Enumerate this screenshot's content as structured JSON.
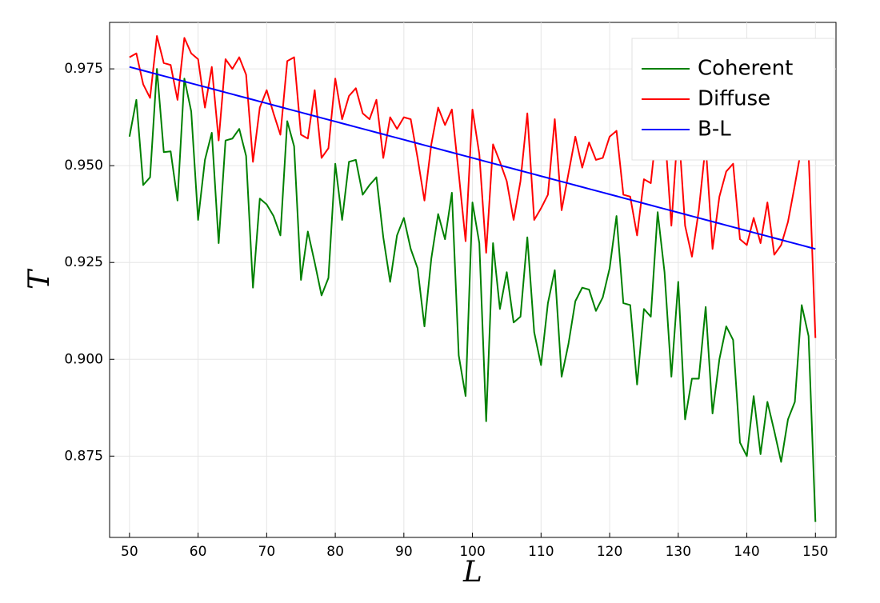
{
  "chart_data": {
    "type": "line",
    "xlabel": "L",
    "ylabel": "T",
    "x": [
      50,
      51,
      52,
      53,
      54,
      55,
      56,
      57,
      58,
      59,
      60,
      61,
      62,
      63,
      64,
      65,
      66,
      67,
      68,
      69,
      70,
      71,
      72,
      73,
      74,
      75,
      76,
      77,
      78,
      79,
      80,
      81,
      82,
      83,
      84,
      85,
      86,
      87,
      88,
      89,
      90,
      91,
      92,
      93,
      94,
      95,
      96,
      97,
      98,
      99,
      100,
      101,
      102,
      103,
      104,
      105,
      106,
      107,
      108,
      109,
      110,
      111,
      112,
      113,
      114,
      115,
      116,
      117,
      118,
      119,
      120,
      121,
      122,
      123,
      124,
      125,
      126,
      127,
      128,
      129,
      130,
      131,
      132,
      133,
      134,
      135,
      136,
      137,
      138,
      139,
      140,
      141,
      142,
      143,
      144,
      145,
      146,
      147,
      148,
      149,
      150
    ],
    "series": [
      {
        "name": "Coherent",
        "color": "#008000",
        "values": [
          0.9575,
          0.967,
          0.945,
          0.947,
          0.975,
          0.9535,
          0.9537,
          0.941,
          0.9725,
          0.964,
          0.936,
          0.9515,
          0.9585,
          0.93,
          0.9565,
          0.957,
          0.9595,
          0.9525,
          0.9185,
          0.9415,
          0.94,
          0.937,
          0.932,
          0.9615,
          0.955,
          0.9205,
          0.933,
          0.925,
          0.9165,
          0.921,
          0.9505,
          0.936,
          0.951,
          0.9515,
          0.9425,
          0.945,
          0.947,
          0.9315,
          0.92,
          0.932,
          0.9365,
          0.9285,
          0.9235,
          0.9085,
          0.926,
          0.9375,
          0.931,
          0.943,
          0.901,
          0.8905,
          0.9405,
          0.93,
          0.884,
          0.93,
          0.913,
          0.9225,
          0.9095,
          0.911,
          0.9315,
          0.907,
          0.8985,
          0.9145,
          0.923,
          0.8955,
          0.904,
          0.915,
          0.9185,
          0.918,
          0.9125,
          0.916,
          0.9235,
          0.937,
          0.9145,
          0.914,
          0.8935,
          0.913,
          0.911,
          0.938,
          0.9225,
          0.8955,
          0.92,
          0.8845,
          0.895,
          0.895,
          0.9135,
          0.886,
          0.9,
          0.9085,
          0.905,
          0.8785,
          0.875,
          0.8905,
          0.8755,
          0.889,
          0.8815,
          0.8735,
          0.8845,
          0.889,
          0.914,
          0.906,
          0.858
        ]
      },
      {
        "name": "Diffuse",
        "color": "#ff0000",
        "values": [
          0.978,
          0.979,
          0.971,
          0.9675,
          0.9835,
          0.9765,
          0.976,
          0.967,
          0.983,
          0.979,
          0.9775,
          0.965,
          0.9755,
          0.9565,
          0.9775,
          0.975,
          0.978,
          0.9735,
          0.951,
          0.965,
          0.9695,
          0.9635,
          0.958,
          0.977,
          0.978,
          0.958,
          0.957,
          0.9695,
          0.952,
          0.9545,
          0.9725,
          0.962,
          0.968,
          0.97,
          0.9635,
          0.962,
          0.967,
          0.952,
          0.9625,
          0.9595,
          0.9625,
          0.962,
          0.952,
          0.941,
          0.9555,
          0.965,
          0.9605,
          0.9645,
          0.948,
          0.9305,
          0.9645,
          0.953,
          0.9275,
          0.9555,
          0.951,
          0.946,
          0.936,
          0.946,
          0.9635,
          0.936,
          0.939,
          0.9425,
          0.962,
          0.9385,
          0.948,
          0.9575,
          0.9495,
          0.956,
          0.9515,
          0.952,
          0.9575,
          0.959,
          0.9425,
          0.942,
          0.932,
          0.9465,
          0.9455,
          0.962,
          0.96,
          0.9345,
          0.961,
          0.9345,
          0.9265,
          0.9385,
          0.9555,
          0.9285,
          0.942,
          0.9485,
          0.9505,
          0.931,
          0.9295,
          0.9365,
          0.93,
          0.9405,
          0.927,
          0.9295,
          0.9355,
          0.945,
          0.955,
          0.9535,
          0.9055
        ]
      },
      {
        "name": "B-L",
        "color": "#0000ff",
        "values": [
          0.9755,
          0.97503,
          0.97456,
          0.97409,
          0.97362,
          0.97315,
          0.97268,
          0.97221,
          0.97174,
          0.97127,
          0.9708,
          0.97033,
          0.96986,
          0.96939,
          0.96892,
          0.96845,
          0.96798,
          0.96751,
          0.96704,
          0.96657,
          0.9661,
          0.96563,
          0.96516,
          0.96469,
          0.96422,
          0.96375,
          0.96328,
          0.96281,
          0.96234,
          0.96187,
          0.9614,
          0.96093,
          0.96046,
          0.95999,
          0.95952,
          0.95905,
          0.95858,
          0.95811,
          0.95764,
          0.95717,
          0.9567,
          0.95623,
          0.95576,
          0.95529,
          0.95482,
          0.95435,
          0.95388,
          0.95341,
          0.95294,
          0.95247,
          0.952,
          0.95153,
          0.95106,
          0.95059,
          0.95012,
          0.94965,
          0.94918,
          0.94871,
          0.94824,
          0.94777,
          0.9473,
          0.94683,
          0.94636,
          0.94589,
          0.94542,
          0.94495,
          0.94448,
          0.94401,
          0.94354,
          0.94307,
          0.9426,
          0.94213,
          0.94166,
          0.94119,
          0.94072,
          0.94025,
          0.93978,
          0.93931,
          0.93884,
          0.93837,
          0.9379,
          0.93743,
          0.93696,
          0.93649,
          0.93602,
          0.93555,
          0.93508,
          0.93461,
          0.93414,
          0.93367,
          0.9332,
          0.93273,
          0.93226,
          0.93179,
          0.93132,
          0.93085,
          0.93038,
          0.92991,
          0.92944,
          0.92897,
          0.9285
        ]
      }
    ],
    "xlim": [
      47.1,
      153.0
    ],
    "ylim": [
      0.854,
      0.987
    ],
    "xticks": [
      50,
      60,
      70,
      80,
      90,
      100,
      110,
      120,
      130,
      140,
      150
    ],
    "yticks": [
      0.875,
      {
        "value": 0.9,
        "label": "0.900"
      },
      0.925,
      {
        "value": 0.95,
        "label": "0.950"
      },
      0.975
    ],
    "grid": true,
    "legend": "upper right"
  }
}
